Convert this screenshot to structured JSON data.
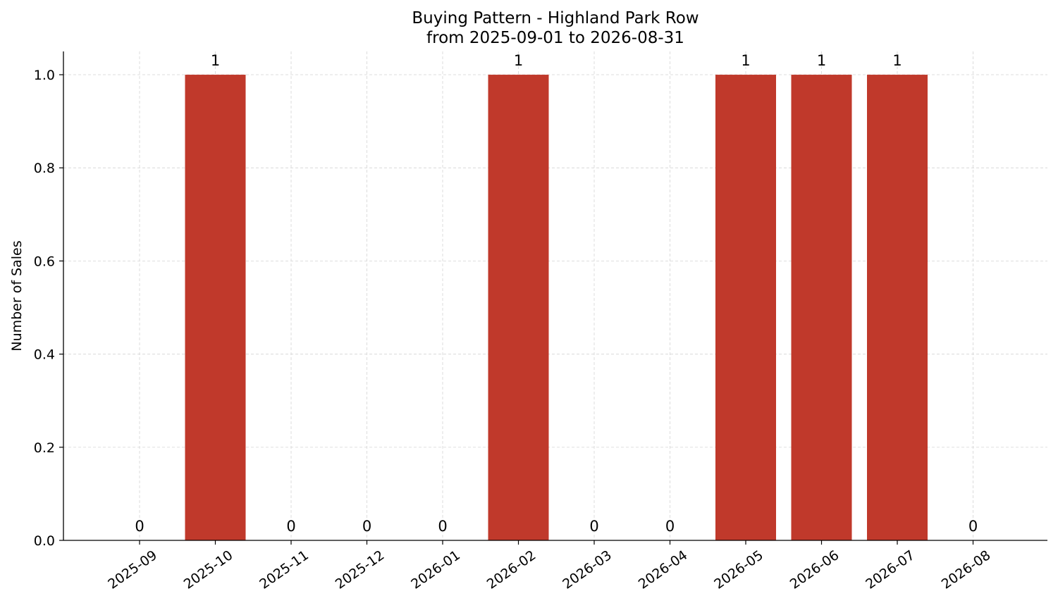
{
  "chart_data": {
    "type": "bar",
    "title": "Buying Pattern - Highland Park Row",
    "subtitle": "from 2025-09-01 to 2026-08-31",
    "xlabel": "",
    "ylabel": "Number of Sales",
    "categories": [
      "2025-09",
      "2025-10",
      "2025-11",
      "2025-12",
      "2026-01",
      "2026-02",
      "2026-03",
      "2026-04",
      "2026-05",
      "2026-06",
      "2026-07",
      "2026-08"
    ],
    "values": [
      0,
      1,
      0,
      0,
      0,
      1,
      0,
      0,
      1,
      1,
      1,
      0
    ],
    "data_labels": [
      "0",
      "1",
      "0",
      "0",
      "0",
      "1",
      "0",
      "0",
      "1",
      "1",
      "1",
      "0"
    ],
    "ylim": [
      0,
      1.05
    ],
    "yticks": [
      0.0,
      0.2,
      0.4,
      0.6,
      0.8,
      1.0
    ],
    "ytick_labels": [
      "0.0",
      "0.2",
      "0.4",
      "0.6",
      "0.8",
      "1.0"
    ],
    "grid": true,
    "bar_color": "#c0392b"
  }
}
